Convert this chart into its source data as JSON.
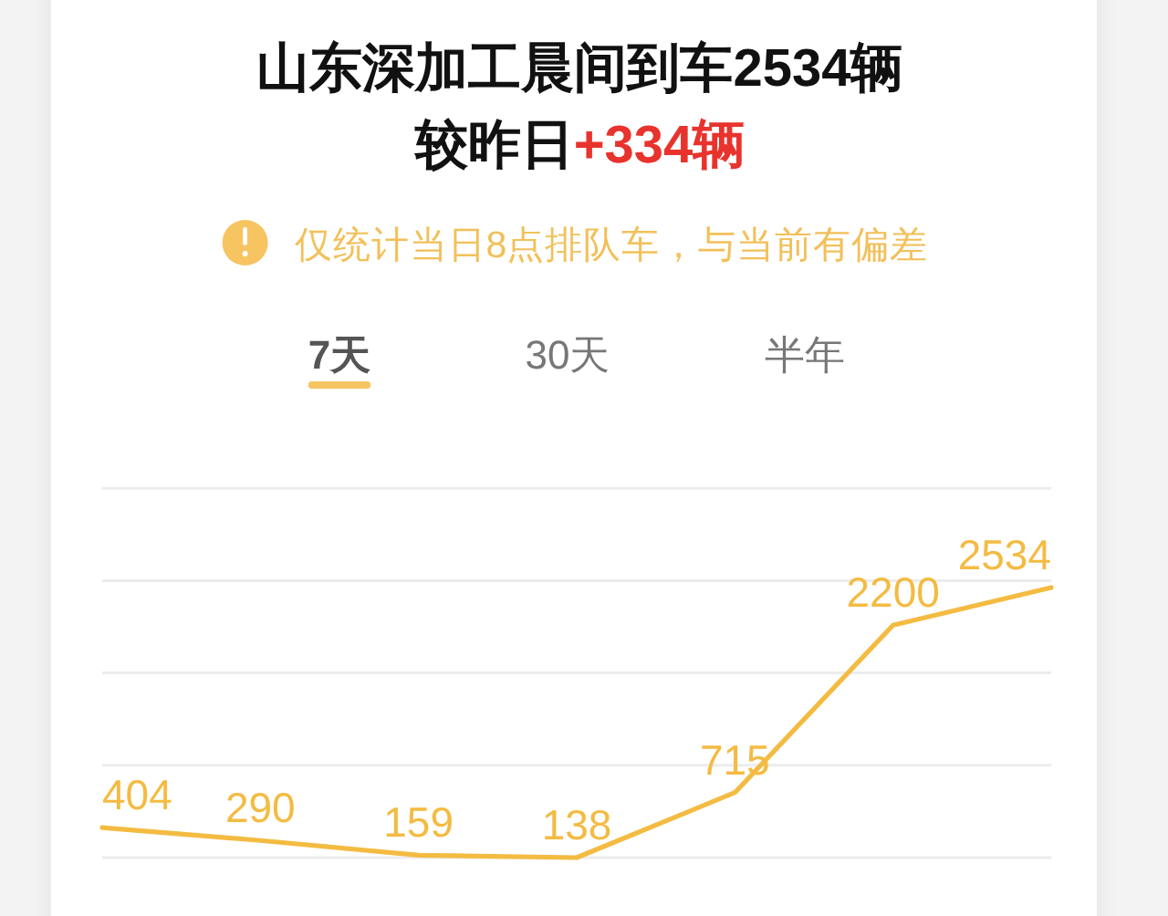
{
  "chart_data": {
    "type": "line",
    "title": "山东深加工晨间到车2534辆",
    "subtitle": "较昨日",
    "annotations": [
      "+334辆",
      "仅统计当日8点排队车，与当前有偏差",
      "7天",
      "30天",
      "半年"
    ],
    "categories": [
      null,
      null,
      null,
      null,
      null,
      null,
      null
    ],
    "values": [
      404,
      290,
      159,
      138,
      715,
      2200,
      2534
    ],
    "color": "#f4bb42",
    "ylim": [
      138,
      3414
    ],
    "yticks": [
      {
        "value": 138,
        "label": null
      },
      {
        "value": 957,
        "label": null
      },
      {
        "value": 1776,
        "label": null
      },
      {
        "value": 2595,
        "label": null
      },
      {
        "value": 3414,
        "label": null
      }
    ],
    "grid": "y",
    "data_labels": true,
    "line_style": "solid"
  }
}
